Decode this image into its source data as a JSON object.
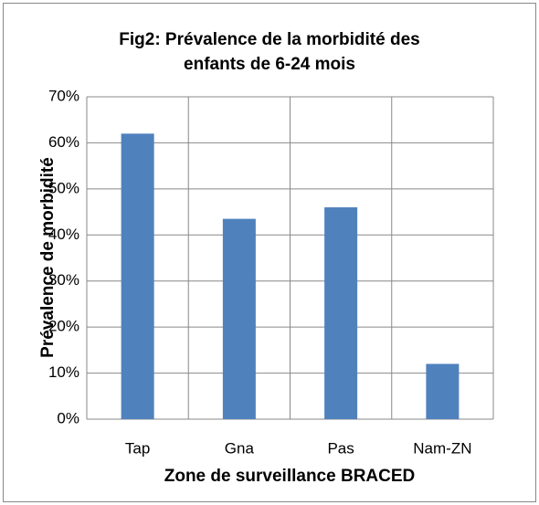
{
  "chart_data": {
    "type": "bar",
    "title": "Fig2: Prévalence de la morbidité des enfants de 6-24 mois",
    "x_label": "Zone de surveillance BRACED",
    "y_label": "Prévalence de morbidité",
    "categories": [
      "Tap",
      "Gna",
      "Pas",
      "Nam-ZN"
    ],
    "values": [
      62,
      43.5,
      46,
      12
    ],
    "color": "#4f81bd",
    "ylim": [
      0,
      70
    ],
    "yticks": [
      {
        "value": 0,
        "label": "0%"
      },
      {
        "value": 10,
        "label": "10%"
      },
      {
        "value": 20,
        "label": "20%"
      },
      {
        "value": 30,
        "label": "30%"
      },
      {
        "value": 40,
        "label": "40%"
      },
      {
        "value": 50,
        "label": "50%"
      },
      {
        "value": 60,
        "label": "60%"
      },
      {
        "value": 70,
        "label": "70%"
      }
    ],
    "grid": true
  }
}
